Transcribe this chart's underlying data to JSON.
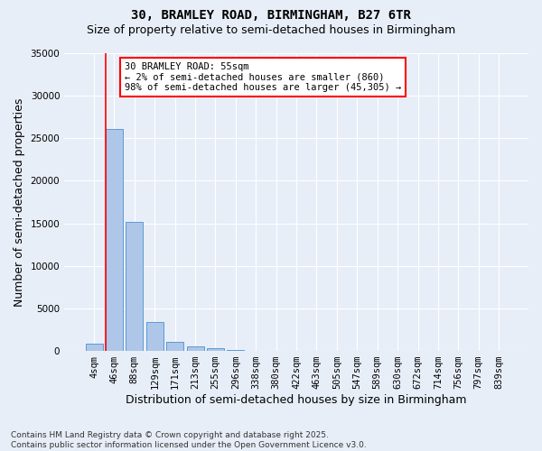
{
  "title_line1": "30, BRAMLEY ROAD, BIRMINGHAM, B27 6TR",
  "title_line2": "Size of property relative to semi-detached houses in Birmingham",
  "xlabel": "Distribution of semi-detached houses by size in Birmingham",
  "ylabel": "Number of semi-detached properties",
  "categories": [
    "4sqm",
    "46sqm",
    "88sqm",
    "129sqm",
    "171sqm",
    "213sqm",
    "255sqm",
    "296sqm",
    "338sqm",
    "380sqm",
    "422sqm",
    "463sqm",
    "505sqm",
    "547sqm",
    "589sqm",
    "630sqm",
    "672sqm",
    "714sqm",
    "756sqm",
    "797sqm",
    "839sqm"
  ],
  "bar_values": [
    860,
    26100,
    15200,
    3400,
    1100,
    500,
    300,
    100,
    50,
    30,
    20,
    10,
    5,
    3,
    2,
    1,
    1,
    1,
    0,
    0,
    0
  ],
  "bar_color": "#aec6e8",
  "bar_edge_color": "#5b9bd5",
  "highlight_bar_index": 1,
  "annotation_text": "30 BRAMLEY ROAD: 55sqm\n← 2% of semi-detached houses are smaller (860)\n98% of semi-detached houses are larger (45,305) →",
  "annotation_box_color": "#ffffff",
  "annotation_box_edge_color": "#ff0000",
  "ylim": [
    0,
    35000
  ],
  "yticks": [
    0,
    5000,
    10000,
    15000,
    20000,
    25000,
    30000,
    35000
  ],
  "background_color": "#e8eef8",
  "grid_color": "#ffffff",
  "footnote": "Contains HM Land Registry data © Crown copyright and database right 2025.\nContains public sector information licensed under the Open Government Licence v3.0.",
  "title_fontsize": 10,
  "subtitle_fontsize": 9,
  "axis_label_fontsize": 9,
  "tick_fontsize": 7.5,
  "annotation_fontsize": 7.5,
  "footnote_fontsize": 6.5
}
